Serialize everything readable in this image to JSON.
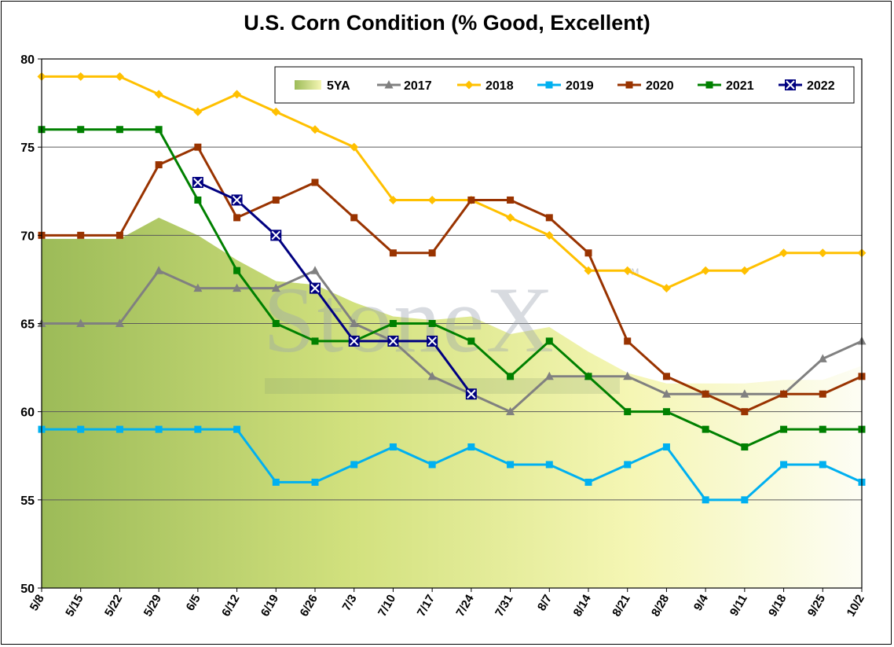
{
  "chart_data": {
    "type": "line",
    "title": "U.S. Corn Condition (% Good, Excellent)",
    "watermark": "StoneX",
    "watermark_tm": "TM",
    "x": [
      "5/8",
      "5/15",
      "5/22",
      "5/29",
      "6/5",
      "6/12",
      "6/19",
      "6/26",
      "7/3",
      "7/10",
      "7/17",
      "7/24",
      "7/31",
      "8/7",
      "8/14",
      "8/21",
      "8/28",
      "9/4",
      "9/11",
      "9/18",
      "9/25",
      "10/2"
    ],
    "ylim": [
      50,
      80
    ],
    "yticks": [
      "50",
      "55",
      "60",
      "65",
      "70",
      "75",
      "80"
    ],
    "grid": true,
    "legend_position": "top-right",
    "series": [
      {
        "name": "5YA",
        "kind": "area",
        "color": "#9cbb58",
        "values": [
          69.8,
          69.8,
          69.8,
          71,
          70,
          68.6,
          67.4,
          67.2,
          66.2,
          65.4,
          65.2,
          65.4,
          64.4,
          64.8,
          63.4,
          62.2,
          61.6,
          61.6,
          61.6,
          61.8,
          61.8,
          62.6
        ]
      },
      {
        "name": "2017",
        "color": "#808080",
        "marker": "triangle",
        "values": [
          65,
          65,
          65,
          68,
          67,
          67,
          67,
          68,
          65,
          64,
          62,
          61,
          60,
          62,
          62,
          62,
          61,
          61,
          61,
          61,
          63,
          64
        ]
      },
      {
        "name": "2018",
        "color": "#ffc000",
        "marker": "diamond",
        "values": [
          79,
          79,
          79,
          78,
          77,
          78,
          77,
          76,
          75,
          72,
          72,
          72,
          71,
          70,
          68,
          68,
          67,
          68,
          68,
          69,
          69,
          69
        ]
      },
      {
        "name": "2019",
        "color": "#00b0f0",
        "marker": "square",
        "values": [
          59,
          59,
          59,
          59,
          59,
          59,
          56,
          56,
          57,
          58,
          57,
          58,
          57,
          57,
          56,
          57,
          58,
          55,
          55,
          57,
          57,
          56
        ]
      },
      {
        "name": "2020",
        "color": "#993300",
        "marker": "square",
        "values": [
          70,
          70,
          70,
          74,
          75,
          71,
          72,
          73,
          71,
          69,
          69,
          72,
          72,
          71,
          69,
          64,
          62,
          61,
          60,
          61,
          61,
          62
        ]
      },
      {
        "name": "2021",
        "color": "#008000",
        "marker": "square",
        "values": [
          76,
          76,
          76,
          76,
          72,
          68,
          65,
          64,
          64,
          65,
          65,
          64,
          62,
          64,
          62,
          60,
          60,
          59,
          58,
          59,
          59,
          59
        ]
      },
      {
        "name": "2022",
        "color": "#000080",
        "marker": "xbox",
        "values": [
          null,
          null,
          null,
          null,
          73,
          72,
          70,
          67,
          64,
          64,
          64,
          61,
          null,
          null,
          null,
          null,
          null,
          null,
          null,
          null,
          null,
          null
        ]
      }
    ]
  }
}
